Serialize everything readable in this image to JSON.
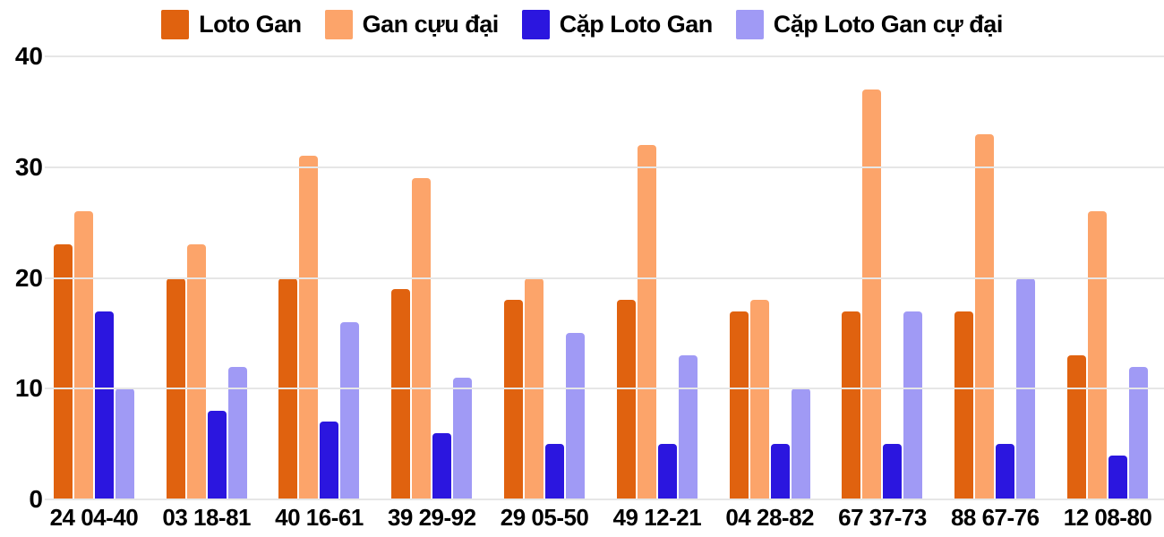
{
  "chart_data": {
    "type": "bar",
    "title": "",
    "xlabel": "",
    "ylabel": "",
    "categories": [
      "24 04-40",
      "03 18-81",
      "40 16-61",
      "39 29-92",
      "29 05-50",
      "49 12-21",
      "04 28-82",
      "67 37-73",
      "88 67-76",
      "12 08-80"
    ],
    "series": [
      {
        "name": "Loto Gan",
        "color": "#E0620F",
        "values": [
          23,
          20,
          20,
          19,
          18,
          18,
          17,
          17,
          17,
          13
        ]
      },
      {
        "name": "Gan cựu đại",
        "color": "#FCA46A",
        "values": [
          26,
          23,
          31,
          29,
          20,
          32,
          18,
          37,
          33,
          26
        ]
      },
      {
        "name": "Cặp Loto Gan",
        "color": "#2B16DF",
        "values": [
          17,
          8,
          7,
          6,
          5,
          5,
          5,
          5,
          5,
          4
        ]
      },
      {
        "name": "Cặp Loto Gan cự đại",
        "color": "#A09AF5",
        "values": [
          10,
          12,
          16,
          11,
          15,
          13,
          10,
          17,
          20,
          12
        ]
      }
    ],
    "ylim": [
      0,
      40
    ],
    "yticks": [
      0,
      10,
      20,
      30,
      40
    ],
    "grid": true,
    "legend_position": "top"
  },
  "colors": {
    "background": "#FFFFFF",
    "grid": "#E6E6E6",
    "text": "#000000"
  }
}
